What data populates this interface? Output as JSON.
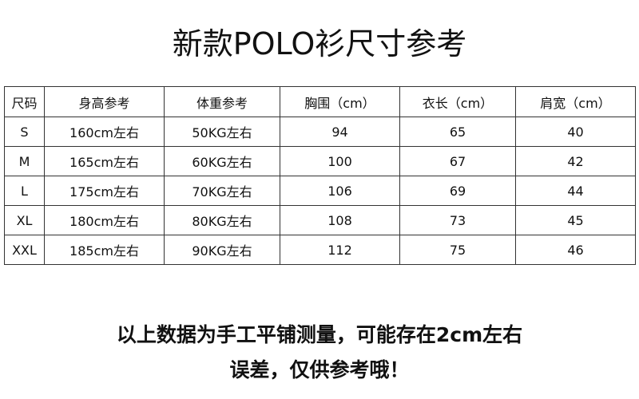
{
  "header": {
    "title": "新款POLO衫尺寸参考"
  },
  "table": {
    "columns": [
      "尺码",
      "身高参考",
      "体重参考",
      "胸围（cm）",
      "衣长（cm）",
      "肩宽（cm）"
    ],
    "rows": [
      [
        "S",
        "160cm左右",
        "50KG左右",
        94,
        65,
        40
      ],
      [
        "M",
        "165cm左右",
        "60KG左右",
        100,
        67,
        42
      ],
      [
        "L",
        "175cm左右",
        "70KG左右",
        106,
        69,
        44
      ],
      [
        "XL",
        "180cm左右",
        "80KG左右",
        108,
        73,
        45
      ],
      [
        "XXL",
        "185cm左右",
        "90KG左右",
        112,
        75,
        46
      ]
    ]
  },
  "note": {
    "lines": [
      "以上数据为手工平铺测量，可能存在2cm左右",
      "误差，仅供参考哦！"
    ]
  }
}
